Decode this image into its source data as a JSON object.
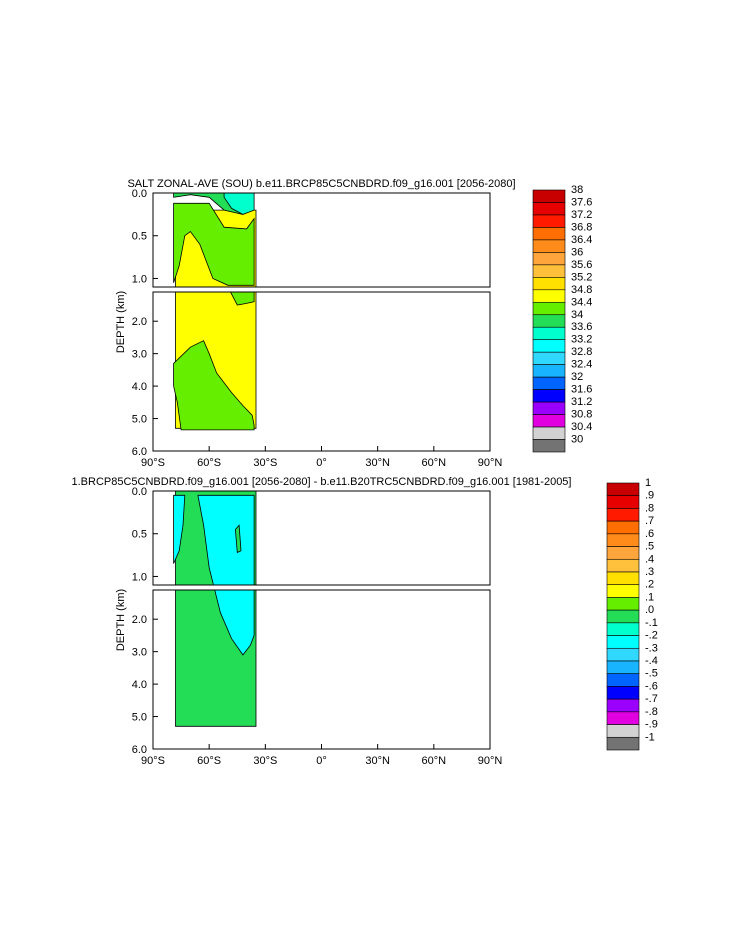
{
  "chart_data": [
    {
      "type": "heatmap",
      "title": "SALT ZONAL-AVE (SOU) b.e11.BRCP85C5CNBDRD.f09_g16.001 [2056-2080]",
      "ylabel": "DEPTH (km)",
      "ylim": [
        0,
        6
      ],
      "y_split": 1.1,
      "y_ticks": [
        "0.0",
        "0.5",
        "1.0",
        "2.0",
        "3.0",
        "4.0",
        "5.0",
        "6.0"
      ],
      "x_ticks": [
        "90°S",
        "60°S",
        "30°S",
        "0°",
        "30°N",
        "60°N",
        "90°N"
      ],
      "lat_range": [
        -90,
        90
      ],
      "colorbar": {
        "labels": [
          "38",
          "37.6",
          "37.2",
          "36.8",
          "36.4",
          "36",
          "35.6",
          "35.2",
          "34.8",
          "34.4",
          "34",
          "33.6",
          "33.2",
          "32.8",
          "32.4",
          "32",
          "31.6",
          "31.2",
          "30.8",
          "30.4",
          "30"
        ],
        "colors": [
          "#c80000",
          "#e60000",
          "#ff1a00",
          "#ff6e00",
          "#ff8c1a",
          "#ffa53c",
          "#ffc03c",
          "#ffe000",
          "#ffff00",
          "#66ee00",
          "#22dd55",
          "#00ffcc",
          "#00ffff",
          "#30d8ff",
          "#18b4ff",
          "#0064ff",
          "#0000ff",
          "#9b00ff",
          "#e000e0",
          "#d2d2d2",
          "#737373"
        ]
      },
      "regions": [
        {
          "color": "#ffff00",
          "points": [
            [
              -78,
              0.2
            ],
            [
              -35,
              0.2
            ],
            [
              -35,
              5.3
            ],
            [
              -78,
              5.3
            ]
          ]
        },
        {
          "color": "#66ee00",
          "points": [
            [
              -79,
              0.12
            ],
            [
              -60,
              0.12
            ],
            [
              -52,
              0.4
            ],
            [
              -40,
              0.42
            ],
            [
              -36,
              0.3
            ],
            [
              -36,
              1.08
            ],
            [
              -50,
              1.08
            ],
            [
              -58,
              1.0
            ],
            [
              -65,
              0.6
            ],
            [
              -70,
              0.45
            ],
            [
              -73,
              0.5
            ],
            [
              -76,
              0.85
            ],
            [
              -79,
              1.05
            ]
          ]
        },
        {
          "color": "#66ee00",
          "points": [
            [
              -40,
              1.1
            ],
            [
              -36,
              1.1
            ],
            [
              -36,
              1.4
            ],
            [
              -40,
              1.45
            ],
            [
              -45,
              1.5
            ],
            [
              -50,
              1.1
            ]
          ]
        },
        {
          "color": "#66ee00",
          "points": [
            [
              -79,
              3.3
            ],
            [
              -70,
              2.8
            ],
            [
              -63,
              2.6
            ],
            [
              -60,
              3.0
            ],
            [
              -56,
              3.6
            ],
            [
              -48,
              4.2
            ],
            [
              -42,
              4.6
            ],
            [
              -37,
              4.9
            ],
            [
              -36,
              5.2
            ],
            [
              -36,
              5.35
            ],
            [
              -75,
              5.35
            ],
            [
              -77,
              4.5
            ],
            [
              -79,
              4.0
            ]
          ]
        },
        {
          "color": "#22dd55",
          "points": [
            [
              -79,
              0.0
            ],
            [
              -36,
              0.0
            ],
            [
              -36,
              0.12
            ],
            [
              -42,
              0.25
            ],
            [
              -52,
              0.2
            ],
            [
              -60,
              0.05
            ],
            [
              -70,
              0.02
            ],
            [
              -79,
              0.05
            ]
          ]
        },
        {
          "color": "#00ffcc",
          "points": [
            [
              -52,
              0.0
            ],
            [
              -36,
              0.0
            ],
            [
              -36,
              0.2
            ],
            [
              -42,
              0.25
            ],
            [
              -48,
              0.18
            ],
            [
              -52,
              0.05
            ]
          ]
        }
      ]
    },
    {
      "type": "heatmap",
      "title": "1.BRCP85C5CNBDRD.f09_g16.001 [2056-2080] - b.e11.B20TRC5CNBDRD.f09_g16.001 [1981-2005]",
      "ylabel": "DEPTH (km)",
      "ylim": [
        0,
        6
      ],
      "y_split": 1.1,
      "y_ticks": [
        "0.0",
        "0.5",
        "1.0",
        "2.0",
        "3.0",
        "4.0",
        "5.0",
        "6.0"
      ],
      "x_ticks": [
        "90°S",
        "60°S",
        "30°S",
        "0°",
        "30°N",
        "60°N",
        "90°N"
      ],
      "lat_range": [
        -90,
        90
      ],
      "colorbar": {
        "labels": [
          "1",
          ".9",
          ".8",
          ".7",
          ".6",
          ".5",
          ".4",
          ".3",
          ".2",
          ".1",
          ".0",
          "-.1",
          "-.2",
          "-.3",
          "-.4",
          "-.5",
          "-.6",
          "-.7",
          "-.8",
          "-.9",
          "-1"
        ],
        "colors": [
          "#c80000",
          "#e60000",
          "#ff1a00",
          "#ff6e00",
          "#ff8c1a",
          "#ffa53c",
          "#ffc03c",
          "#ffe000",
          "#ffff00",
          "#66ee00",
          "#22dd55",
          "#00ffcc",
          "#00ffff",
          "#30d8ff",
          "#18b4ff",
          "#0064ff",
          "#0000ff",
          "#9b00ff",
          "#e000e0",
          "#d2d2d2",
          "#737373"
        ]
      },
      "regions": [
        {
          "color": "#22dd55",
          "points": [
            [
              -78,
              0.0
            ],
            [
              -35,
              0.0
            ],
            [
              -35,
              5.3
            ],
            [
              -78,
              5.3
            ]
          ]
        },
        {
          "color": "#00ffff",
          "points": [
            [
              -66,
              0.05
            ],
            [
              -36,
              0.05
            ],
            [
              -36,
              2.5
            ],
            [
              -38,
              2.8
            ],
            [
              -42,
              3.1
            ],
            [
              -48,
              2.6
            ],
            [
              -54,
              1.8
            ],
            [
              -60,
              0.9
            ],
            [
              -63,
              0.4
            ]
          ]
        },
        {
          "color": "#00ffff",
          "points": [
            [
              -79,
              0.05
            ],
            [
              -73,
              0.05
            ],
            [
              -74,
              0.4
            ],
            [
              -76,
              0.7
            ],
            [
              -79,
              0.85
            ]
          ]
        },
        {
          "color": "#22dd55",
          "points": [
            [
              -46,
              0.45
            ],
            [
              -44,
              0.4
            ],
            [
              -43,
              0.7
            ],
            [
              -45,
              0.72
            ]
          ]
        }
      ]
    }
  ]
}
